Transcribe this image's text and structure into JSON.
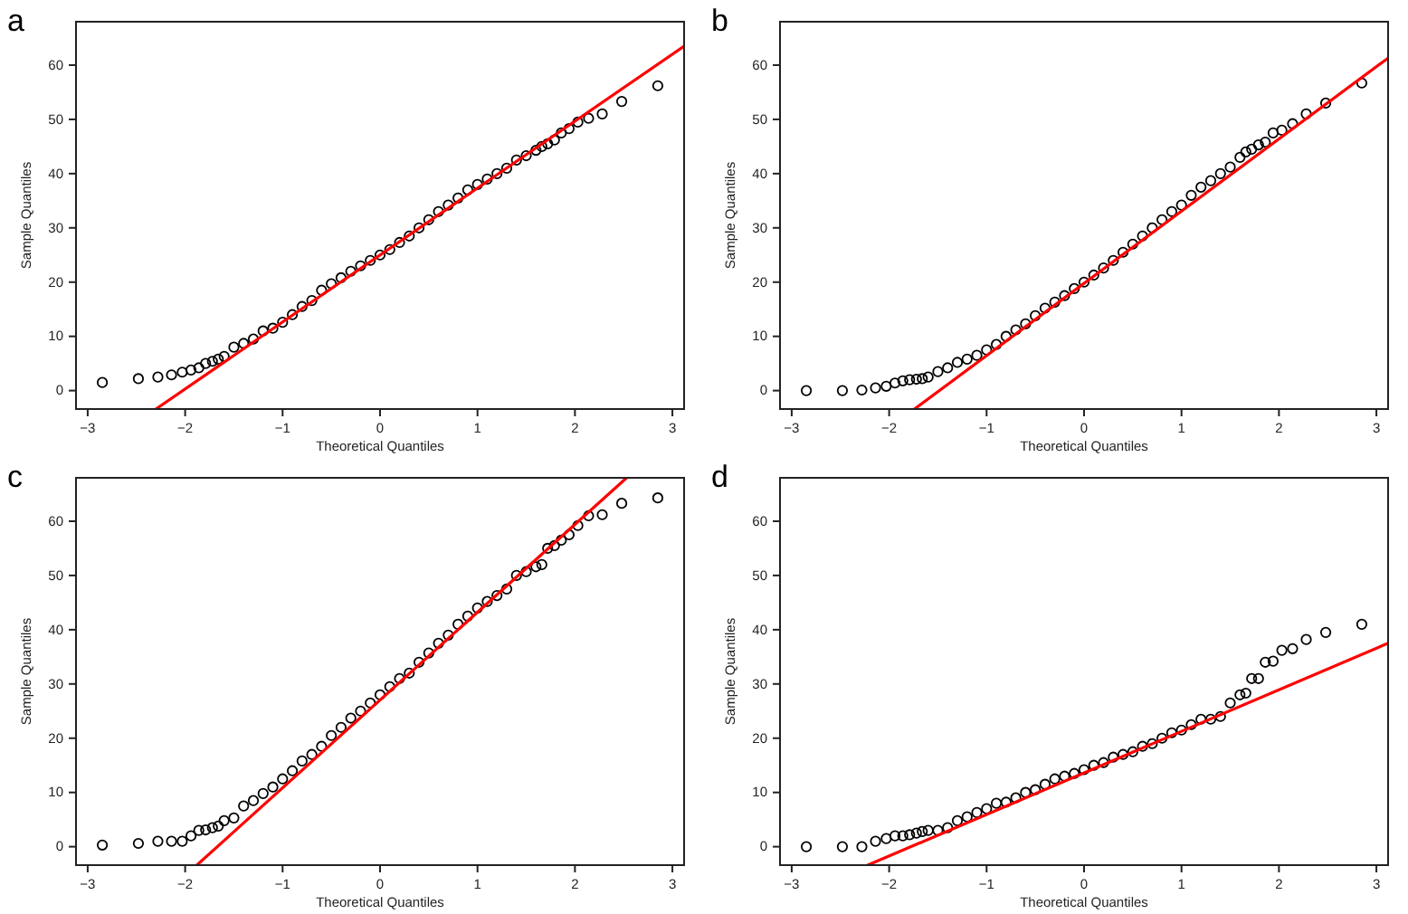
{
  "chart_data": [
    {
      "type": "scatter",
      "title": "a",
      "xlabel": "Theoretical Quantiles",
      "ylabel": "Sample Quantiles",
      "xlim": [
        -3.12,
        3.12
      ],
      "ylim": [
        -3.4,
        68
      ],
      "xticks": [
        -3,
        -2,
        -1,
        0,
        1,
        2,
        3
      ],
      "yticks": [
        0,
        10,
        20,
        30,
        40,
        50,
        60
      ],
      "series": [
        {
          "marker": "circle",
          "color": "#000000",
          "x": [
            -2.85,
            -2.48,
            -2.28,
            -2.14,
            -2.03,
            -1.94,
            -1.86,
            -1.79,
            -1.72,
            -1.66,
            -1.6,
            -1.5,
            -1.4,
            -1.3,
            -1.2,
            -1.1,
            -1.0,
            -0.9,
            -0.8,
            -0.7,
            -0.6,
            -0.5,
            -0.4,
            -0.3,
            -0.2,
            -0.1,
            0,
            0.1,
            0.2,
            0.3,
            0.4,
            0.5,
            0.6,
            0.7,
            0.8,
            0.9,
            1.0,
            1.1,
            1.2,
            1.3,
            1.4,
            1.5,
            1.6,
            1.66,
            1.72,
            1.79,
            1.86,
            1.94,
            2.03,
            2.14,
            2.28,
            2.48,
            2.85
          ],
          "values": [
            1.5,
            2.2,
            2.5,
            2.9,
            3.4,
            3.8,
            4.2,
            5,
            5.4,
            5.8,
            6.3,
            8,
            8.7,
            9.5,
            11,
            11.5,
            12.6,
            14,
            15.5,
            16.6,
            18.5,
            19.7,
            20.8,
            22,
            23,
            24,
            25,
            26,
            27.3,
            28.5,
            30,
            31.5,
            33,
            34.2,
            35.5,
            37,
            38,
            39,
            40,
            41,
            42.5,
            43.3,
            44.3,
            45,
            45.5,
            46.2,
            47.5,
            48.3,
            49.5,
            50.2,
            51,
            53.3,
            56.2
          ]
        },
        {
          "type": "line",
          "color": "#ff0000",
          "x": [
            -2.3,
            3.12
          ],
          "values": [
            -3.4,
            63.5
          ]
        }
      ]
    },
    {
      "type": "scatter",
      "title": "b",
      "xlabel": "Theoretical Quantiles",
      "ylabel": "Sample Quantiles",
      "xlim": [
        -3.12,
        3.12
      ],
      "ylim": [
        -3.4,
        68
      ],
      "xticks": [
        -3,
        -2,
        -1,
        0,
        1,
        2,
        3
      ],
      "yticks": [
        0,
        10,
        20,
        30,
        40,
        50,
        60
      ],
      "series": [
        {
          "marker": "circle",
          "color": "#000000",
          "x": [
            -2.85,
            -2.48,
            -2.28,
            -2.14,
            -2.03,
            -1.94,
            -1.86,
            -1.79,
            -1.72,
            -1.66,
            -1.6,
            -1.5,
            -1.4,
            -1.3,
            -1.2,
            -1.1,
            -1.0,
            -0.9,
            -0.8,
            -0.7,
            -0.6,
            -0.5,
            -0.4,
            -0.3,
            -0.2,
            -0.1,
            0,
            0.1,
            0.2,
            0.3,
            0.4,
            0.5,
            0.6,
            0.7,
            0.8,
            0.9,
            1.0,
            1.1,
            1.2,
            1.3,
            1.4,
            1.5,
            1.6,
            1.66,
            1.72,
            1.79,
            1.86,
            1.94,
            2.03,
            2.14,
            2.28,
            2.48,
            2.85
          ],
          "values": [
            0,
            0,
            0.1,
            0.5,
            0.8,
            1.4,
            1.8,
            2.0,
            2.1,
            2.2,
            2.5,
            3.5,
            4.2,
            5.2,
            5.8,
            6.5,
            7.5,
            8.5,
            10,
            11.2,
            12.3,
            13.8,
            15.2,
            16.3,
            17.5,
            18.8,
            20,
            21.3,
            22.6,
            24,
            25.5,
            27,
            28.5,
            30,
            31.5,
            33,
            34.2,
            36,
            37.5,
            38.7,
            40,
            41.2,
            43,
            44,
            44.5,
            45.3,
            45.8,
            47.5,
            48,
            49.2,
            51,
            53,
            56.7
          ]
        },
        {
          "type": "line",
          "color": "#ff0000",
          "x": [
            -1.74,
            3.12
          ],
          "values": [
            -3.4,
            61.3
          ]
        }
      ]
    },
    {
      "type": "scatter",
      "title": "c",
      "xlabel": "Theoretical Quantiles",
      "ylabel": "Sample Quantiles",
      "xlim": [
        -3.12,
        3.12
      ],
      "ylim": [
        -3.4,
        68
      ],
      "xticks": [
        -3,
        -2,
        -1,
        0,
        1,
        2,
        3
      ],
      "yticks": [
        0,
        10,
        20,
        30,
        40,
        50,
        60
      ],
      "series": [
        {
          "marker": "circle",
          "color": "#000000",
          "x": [
            -2.85,
            -2.48,
            -2.28,
            -2.14,
            -2.03,
            -1.94,
            -1.86,
            -1.79,
            -1.72,
            -1.66,
            -1.6,
            -1.5,
            -1.4,
            -1.3,
            -1.2,
            -1.1,
            -1.0,
            -0.9,
            -0.8,
            -0.7,
            -0.6,
            -0.5,
            -0.4,
            -0.3,
            -0.2,
            -0.1,
            0,
            0.1,
            0.2,
            0.3,
            0.4,
            0.5,
            0.6,
            0.7,
            0.8,
            0.9,
            1.0,
            1.1,
            1.2,
            1.3,
            1.4,
            1.5,
            1.6,
            1.66,
            1.72,
            1.79,
            1.86,
            1.94,
            2.03,
            2.14,
            2.28,
            2.48,
            2.85
          ],
          "values": [
            0.3,
            0.6,
            1.0,
            1.0,
            1.0,
            2.0,
            3.0,
            3.1,
            3.5,
            3.8,
            4.8,
            5.3,
            7.5,
            8.5,
            9.8,
            11,
            12.5,
            14,
            15.8,
            17,
            18.5,
            20.5,
            22,
            23.7,
            25,
            26.5,
            28,
            29.5,
            31,
            32,
            34,
            35.7,
            37.5,
            39,
            41,
            42.5,
            44,
            45.2,
            46.3,
            47.5,
            50,
            50.7,
            51.6,
            52,
            55,
            55.5,
            56.5,
            57.5,
            59.2,
            61,
            61.2,
            63.3,
            64.3
          ]
        },
        {
          "type": "line",
          "color": "#ff0000",
          "x": [
            -1.88,
            2.53
          ],
          "values": [
            -3.4,
            68
          ]
        }
      ]
    },
    {
      "type": "scatter",
      "title": "d",
      "xlabel": "Theoretical Quantiles",
      "ylabel": "Sample Quantiles",
      "xlim": [
        -3.12,
        3.12
      ],
      "ylim": [
        -3.4,
        68
      ],
      "xticks": [
        -3,
        -2,
        -1,
        0,
        1,
        2,
        3
      ],
      "yticks": [
        0,
        10,
        20,
        30,
        40,
        50,
        60
      ],
      "series": [
        {
          "marker": "circle",
          "color": "#000000",
          "x": [
            -2.85,
            -2.48,
            -2.28,
            -2.14,
            -2.03,
            -1.94,
            -1.86,
            -1.79,
            -1.72,
            -1.66,
            -1.6,
            -1.5,
            -1.4,
            -1.3,
            -1.2,
            -1.1,
            -1.0,
            -0.9,
            -0.8,
            -0.7,
            -0.6,
            -0.5,
            -0.4,
            -0.3,
            -0.2,
            -0.1,
            0,
            0.1,
            0.2,
            0.3,
            0.4,
            0.5,
            0.6,
            0.7,
            0.8,
            0.9,
            1.0,
            1.1,
            1.2,
            1.3,
            1.4,
            1.5,
            1.6,
            1.66,
            1.72,
            1.79,
            1.86,
            1.94,
            2.03,
            2.14,
            2.28,
            2.48,
            2.85
          ],
          "values": [
            0,
            0,
            0,
            1,
            1.5,
            2,
            2,
            2.2,
            2.5,
            2.8,
            3,
            3,
            3.5,
            4.8,
            5.5,
            6.3,
            7,
            8,
            8.2,
            9,
            10,
            10.5,
            11.5,
            12.5,
            13,
            13.5,
            14.2,
            15,
            15.5,
            16.5,
            17,
            17.5,
            18.5,
            19,
            20,
            21,
            21.5,
            22.5,
            23.5,
            23.5,
            24,
            26.5,
            28,
            28.3,
            31,
            31,
            34,
            34.2,
            36.2,
            36.5,
            38.2,
            39.5,
            41
          ]
        },
        {
          "type": "line",
          "color": "#ff0000",
          "x": [
            -2.22,
            3.12
          ],
          "values": [
            -3.4,
            37.5
          ]
        }
      ]
    }
  ]
}
